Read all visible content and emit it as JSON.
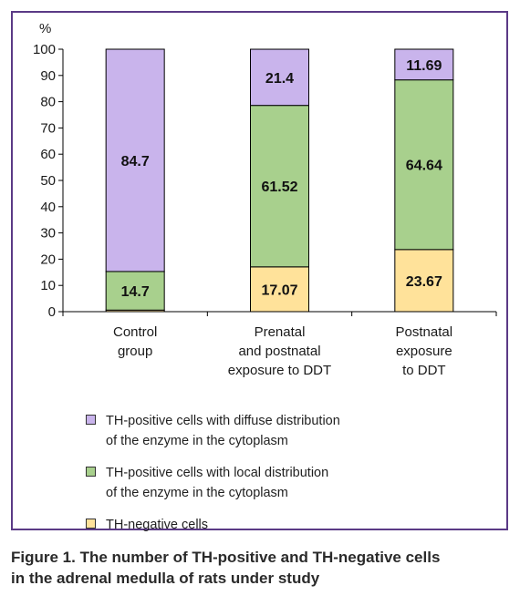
{
  "chart_data": {
    "type": "bar",
    "stacked": true,
    "y_unit_label": "%",
    "ylim": [
      0,
      100
    ],
    "y_ticks": [
      0,
      10,
      20,
      30,
      40,
      50,
      60,
      70,
      80,
      90,
      100
    ],
    "grid": false,
    "legend_position": "bottom",
    "categories": [
      "Control\ngroup",
      "Prenatal\nand postnatal\nexposure to DDT",
      "Postnatal\nexposure\nto DDT"
    ],
    "series": [
      {
        "name": "TH-negative cells",
        "color": "#ffe29a",
        "values": [
          0.6,
          17.07,
          23.67
        ],
        "labels": [
          "",
          "17.07",
          "23.67"
        ]
      },
      {
        "name": "TH-positive cells with local distribution\nof the enzyme in the cytoplasm",
        "color": "#a8d08d",
        "values": [
          14.7,
          61.52,
          64.64
        ],
        "labels": [
          "14.7",
          "61.52",
          "64.64"
        ]
      },
      {
        "name": "TH-positive cells with diffuse distribution\nof the enzyme in the cytoplasm",
        "color": "#c9b4ec",
        "values": [
          84.7,
          21.4,
          11.69
        ],
        "labels": [
          "84.7",
          "21.4",
          "11.69"
        ]
      }
    ]
  },
  "caption": "Figure 1. The number of TH-positive and TH-negative cells\nin the adrenal medulla of rats under study"
}
